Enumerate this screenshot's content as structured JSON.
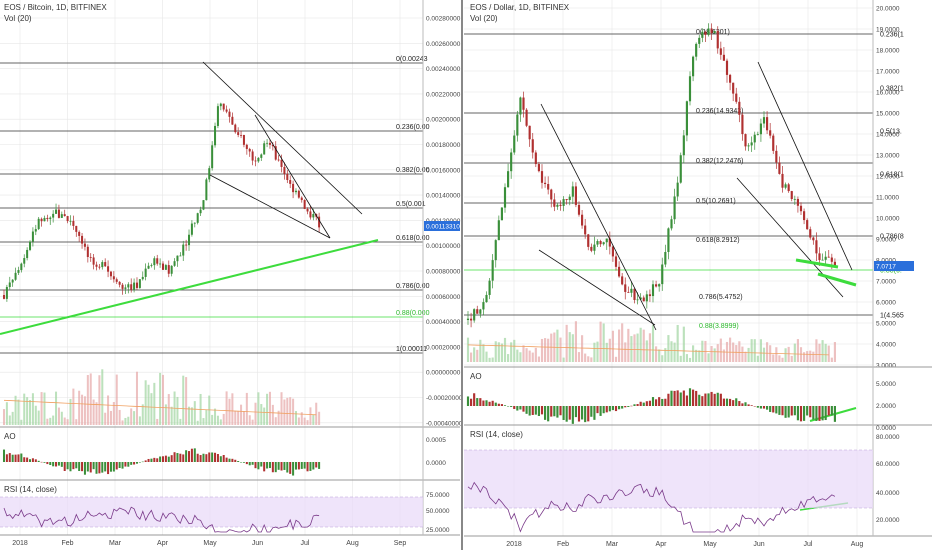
{
  "colors": {
    "up": "#3a8f3a",
    "down": "#b03030",
    "fib": "#333333",
    "fib_green": "#3ddc3d",
    "trend_green": "#3ddc3d",
    "rsi_band": "#e8d8f8",
    "rsi_line": "#7a3a8a",
    "vol_ma": "#f0a060",
    "price_tag": "#2a6fdb",
    "grid": "#e6e6e6"
  },
  "panels": [
    {
      "id": "left",
      "title": "EOS / Bitcoin, 1D, BITFINEX",
      "vol_label": "Vol (20)",
      "ao_label": "AO",
      "rsi_label": "RSI (14, close)",
      "price_tag": "0.00113310",
      "x_ticks": [
        "2018",
        "Feb",
        "Mar",
        "Apr",
        "May",
        "Jun",
        "Jul",
        "Aug",
        "Sep"
      ],
      "y_ticks": [
        "0.00280000",
        "0.00260000",
        "0.00240000",
        "0.00220000",
        "0.00200000",
        "0.00180000",
        "0.00160000",
        "0.00140000",
        "0.00120000",
        "0.00100000",
        "0.00080000",
        "0.00060000",
        "0.00040000",
        "0.00020000",
        "0.00000000",
        "-0.00020000",
        "-0.00040000"
      ],
      "ao_ticks": [
        "0.0005",
        "0.0000"
      ],
      "rsi_ticks": [
        "75.0000",
        "50.0000",
        "25.0000"
      ],
      "fib_labels": [
        "0(0.00243",
        "0.236(0.00",
        "0.382(0.00",
        "0.5(0.001",
        "0.618(0.00",
        "0.786(0.00",
        "0.88(0.000",
        "1(0.00011"
      ],
      "chart_data": {
        "type": "line",
        "title": "EOS / Bitcoin, 1D, BITFINEX",
        "xlabel": "",
        "ylabel": "",
        "x": [
          "2018",
          "Feb",
          "Mar",
          "Apr",
          "May",
          "Jun",
          "Jul"
        ],
        "series": [
          {
            "values": [
              0.00055,
              0.00095,
              0.00072,
              0.0007,
              0.00205,
              0.00175,
              0.00115
            ]
          }
        ],
        "ylim": [
          -0.00046,
          0.0029
        ]
      }
    },
    {
      "id": "right",
      "title": "EOS / Dollar, 1D, BITFINEX",
      "vol_label": "Vol (20)",
      "ao_label": "AO",
      "rsi_label": "RSI (14, close)",
      "price_tag": "7.0717",
      "x_ticks": [
        "2018",
        "Feb",
        "Mar",
        "Apr",
        "May",
        "Jun",
        "Jul",
        "Aug"
      ],
      "y_ticks": [
        "20.0000",
        "19.0000",
        "18.0000",
        "17.0000",
        "16.0000",
        "15.0000",
        "14.0000",
        "13.0000",
        "12.0000",
        "11.0000",
        "10.0000",
        "9.0000",
        "8.0000",
        "7.0000",
        "6.0000",
        "5.0000",
        "4.0000",
        "3.0000"
      ],
      "ao_ticks": [
        "5.0000",
        "2.0000",
        "0.0000"
      ],
      "rsi_ticks": [
        "80.0000",
        "60.0000",
        "40.0000",
        "20.0000"
      ],
      "fib_right_labels": [
        "0.236(1",
        "0.382(1",
        "0.5(13.",
        "0.618(1",
        "0.786(8",
        "0.88(6.",
        "1(4.565"
      ],
      "fib_inner_labels": [
        "0(18.6301)",
        "0.236(14.9343)",
        "0.382(12.2476)",
        "0.5(10.2691)",
        "0.618(8.2912)",
        "0.786(5.4752)",
        "0.88(3.8999)"
      ],
      "chart_data": {
        "type": "line",
        "title": "EOS / Dollar, 1D, BITFINEX",
        "xlabel": "",
        "ylabel": "",
        "x": [
          "2018",
          "Feb",
          "Mar",
          "Apr",
          "May",
          "Jun",
          "Jul"
        ],
        "series": [
          {
            "values": [
              4.5,
              12.5,
              6.0,
              6.5,
              19.0,
              12.5,
              7.07
            ]
          }
        ],
        "ylim": [
          2.5,
          20.1
        ]
      }
    }
  ]
}
